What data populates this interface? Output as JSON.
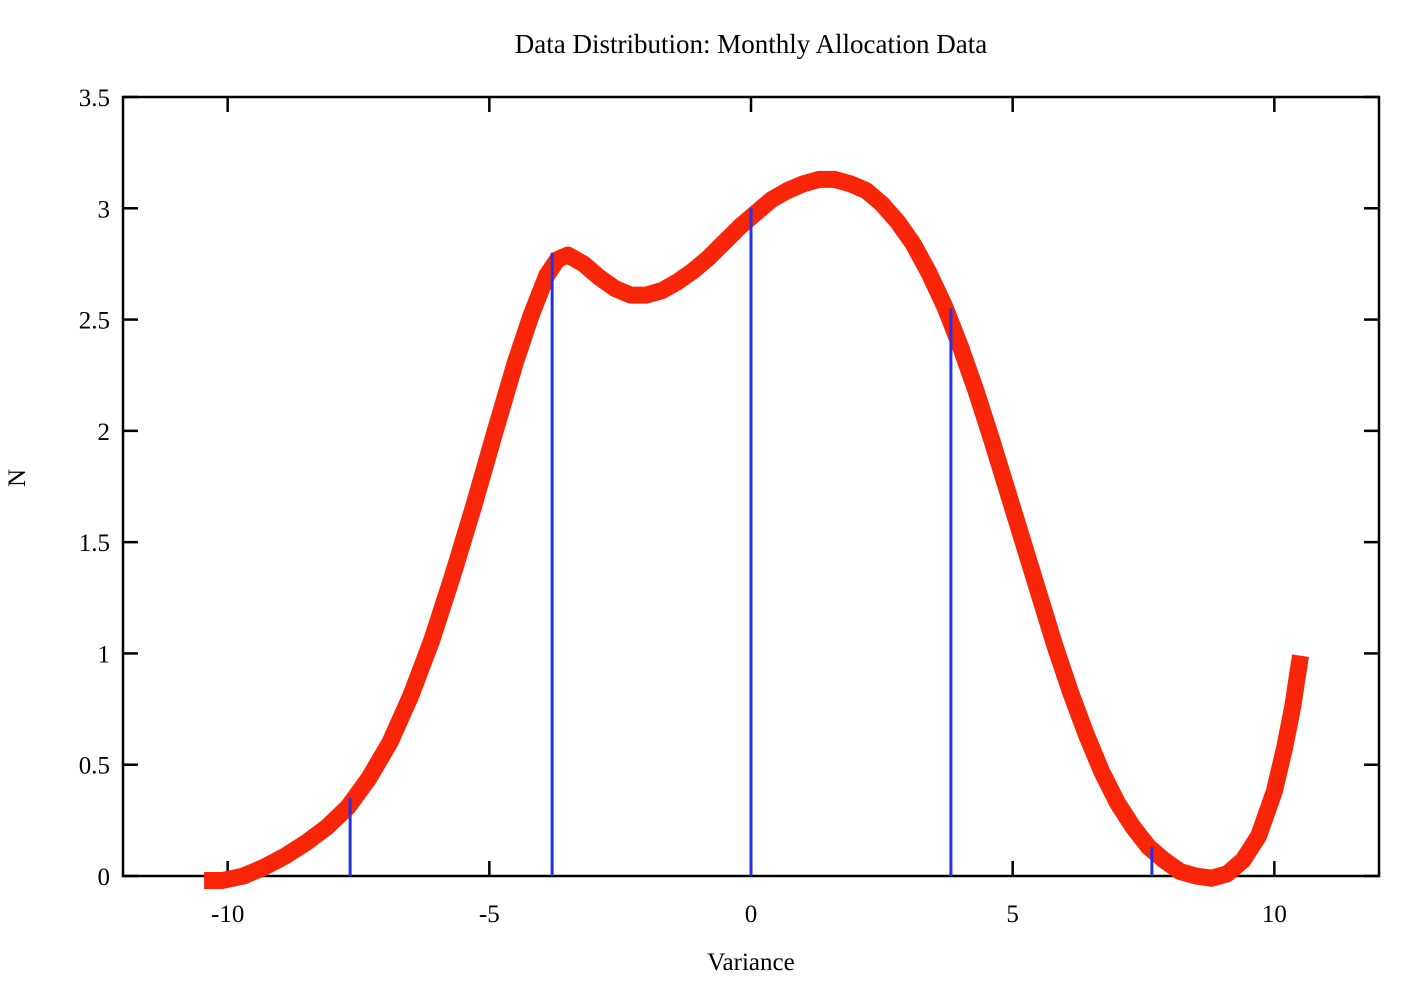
{
  "page": {
    "background": "#ffffff"
  },
  "chart_data": {
    "type": "line",
    "title": "Data Distribution: Monthly Allocation Data",
    "xlabel": "Variance",
    "ylabel": "N",
    "xlim": [
      -12,
      12
    ],
    "ylim": [
      0,
      3.5
    ],
    "x_ticks": [
      -10,
      -5,
      0,
      5,
      10
    ],
    "x_tick_labels": [
      "-10",
      "-5",
      "0",
      "5",
      "10"
    ],
    "y_ticks": [
      0,
      0.5,
      1,
      1.5,
      2,
      2.5,
      3,
      3.5
    ],
    "y_tick_labels": [
      "0",
      "0.5",
      "1",
      "1.5",
      "2",
      "2.5",
      "3",
      "3.5"
    ],
    "grid": false,
    "legend": "none",
    "border_color": "#000000",
    "series": [
      {
        "name": "smooth-distribution-curve",
        "type": "line",
        "color": "#f82508",
        "stroke_width": 17,
        "points": [
          [
            -10.45,
            -0.02
          ],
          [
            -10.1,
            -0.02
          ],
          [
            -9.7,
            0.0
          ],
          [
            -9.3,
            0.04
          ],
          [
            -8.9,
            0.09
          ],
          [
            -8.5,
            0.15
          ],
          [
            -8.1,
            0.22
          ],
          [
            -7.7,
            0.31
          ],
          [
            -7.3,
            0.44
          ],
          [
            -6.9,
            0.6
          ],
          [
            -6.5,
            0.81
          ],
          [
            -6.1,
            1.06
          ],
          [
            -5.7,
            1.35
          ],
          [
            -5.3,
            1.66
          ],
          [
            -4.9,
            1.99
          ],
          [
            -4.5,
            2.31
          ],
          [
            -4.2,
            2.52
          ],
          [
            -3.9,
            2.7
          ],
          [
            -3.7,
            2.77
          ],
          [
            -3.5,
            2.79
          ],
          [
            -3.2,
            2.75
          ],
          [
            -2.9,
            2.69
          ],
          [
            -2.6,
            2.64
          ],
          [
            -2.3,
            2.61
          ],
          [
            -2.0,
            2.61
          ],
          [
            -1.7,
            2.63
          ],
          [
            -1.4,
            2.67
          ],
          [
            -1.1,
            2.72
          ],
          [
            -0.8,
            2.78
          ],
          [
            -0.5,
            2.85
          ],
          [
            -0.2,
            2.92
          ],
          [
            0.1,
            2.98
          ],
          [
            0.4,
            3.04
          ],
          [
            0.7,
            3.08
          ],
          [
            1.0,
            3.11
          ],
          [
            1.3,
            3.13
          ],
          [
            1.6,
            3.13
          ],
          [
            1.9,
            3.11
          ],
          [
            2.2,
            3.08
          ],
          [
            2.5,
            3.02
          ],
          [
            2.8,
            2.94
          ],
          [
            3.1,
            2.84
          ],
          [
            3.4,
            2.71
          ],
          [
            3.7,
            2.56
          ],
          [
            4.0,
            2.38
          ],
          [
            4.3,
            2.18
          ],
          [
            4.6,
            1.96
          ],
          [
            4.9,
            1.73
          ],
          [
            5.2,
            1.5
          ],
          [
            5.5,
            1.27
          ],
          [
            5.8,
            1.04
          ],
          [
            6.1,
            0.83
          ],
          [
            6.4,
            0.64
          ],
          [
            6.7,
            0.47
          ],
          [
            7.0,
            0.33
          ],
          [
            7.3,
            0.22
          ],
          [
            7.6,
            0.13
          ],
          [
            7.9,
            0.07
          ],
          [
            8.2,
            0.02
          ],
          [
            8.5,
            0.0
          ],
          [
            8.8,
            -0.01
          ],
          [
            9.1,
            0.01
          ],
          [
            9.4,
            0.07
          ],
          [
            9.7,
            0.18
          ],
          [
            10.0,
            0.38
          ],
          [
            10.2,
            0.58
          ],
          [
            10.35,
            0.76
          ],
          [
            10.5,
            0.99
          ]
        ]
      },
      {
        "name": "monthly-allocation-impulses",
        "type": "impulses",
        "color": "#2233e6",
        "stroke_width": 3,
        "points": [
          [
            -7.66,
            0.35
          ],
          [
            -3.8,
            2.8
          ],
          [
            0.0,
            3.0
          ],
          [
            3.82,
            2.55
          ],
          [
            7.66,
            0.13
          ]
        ]
      }
    ]
  }
}
